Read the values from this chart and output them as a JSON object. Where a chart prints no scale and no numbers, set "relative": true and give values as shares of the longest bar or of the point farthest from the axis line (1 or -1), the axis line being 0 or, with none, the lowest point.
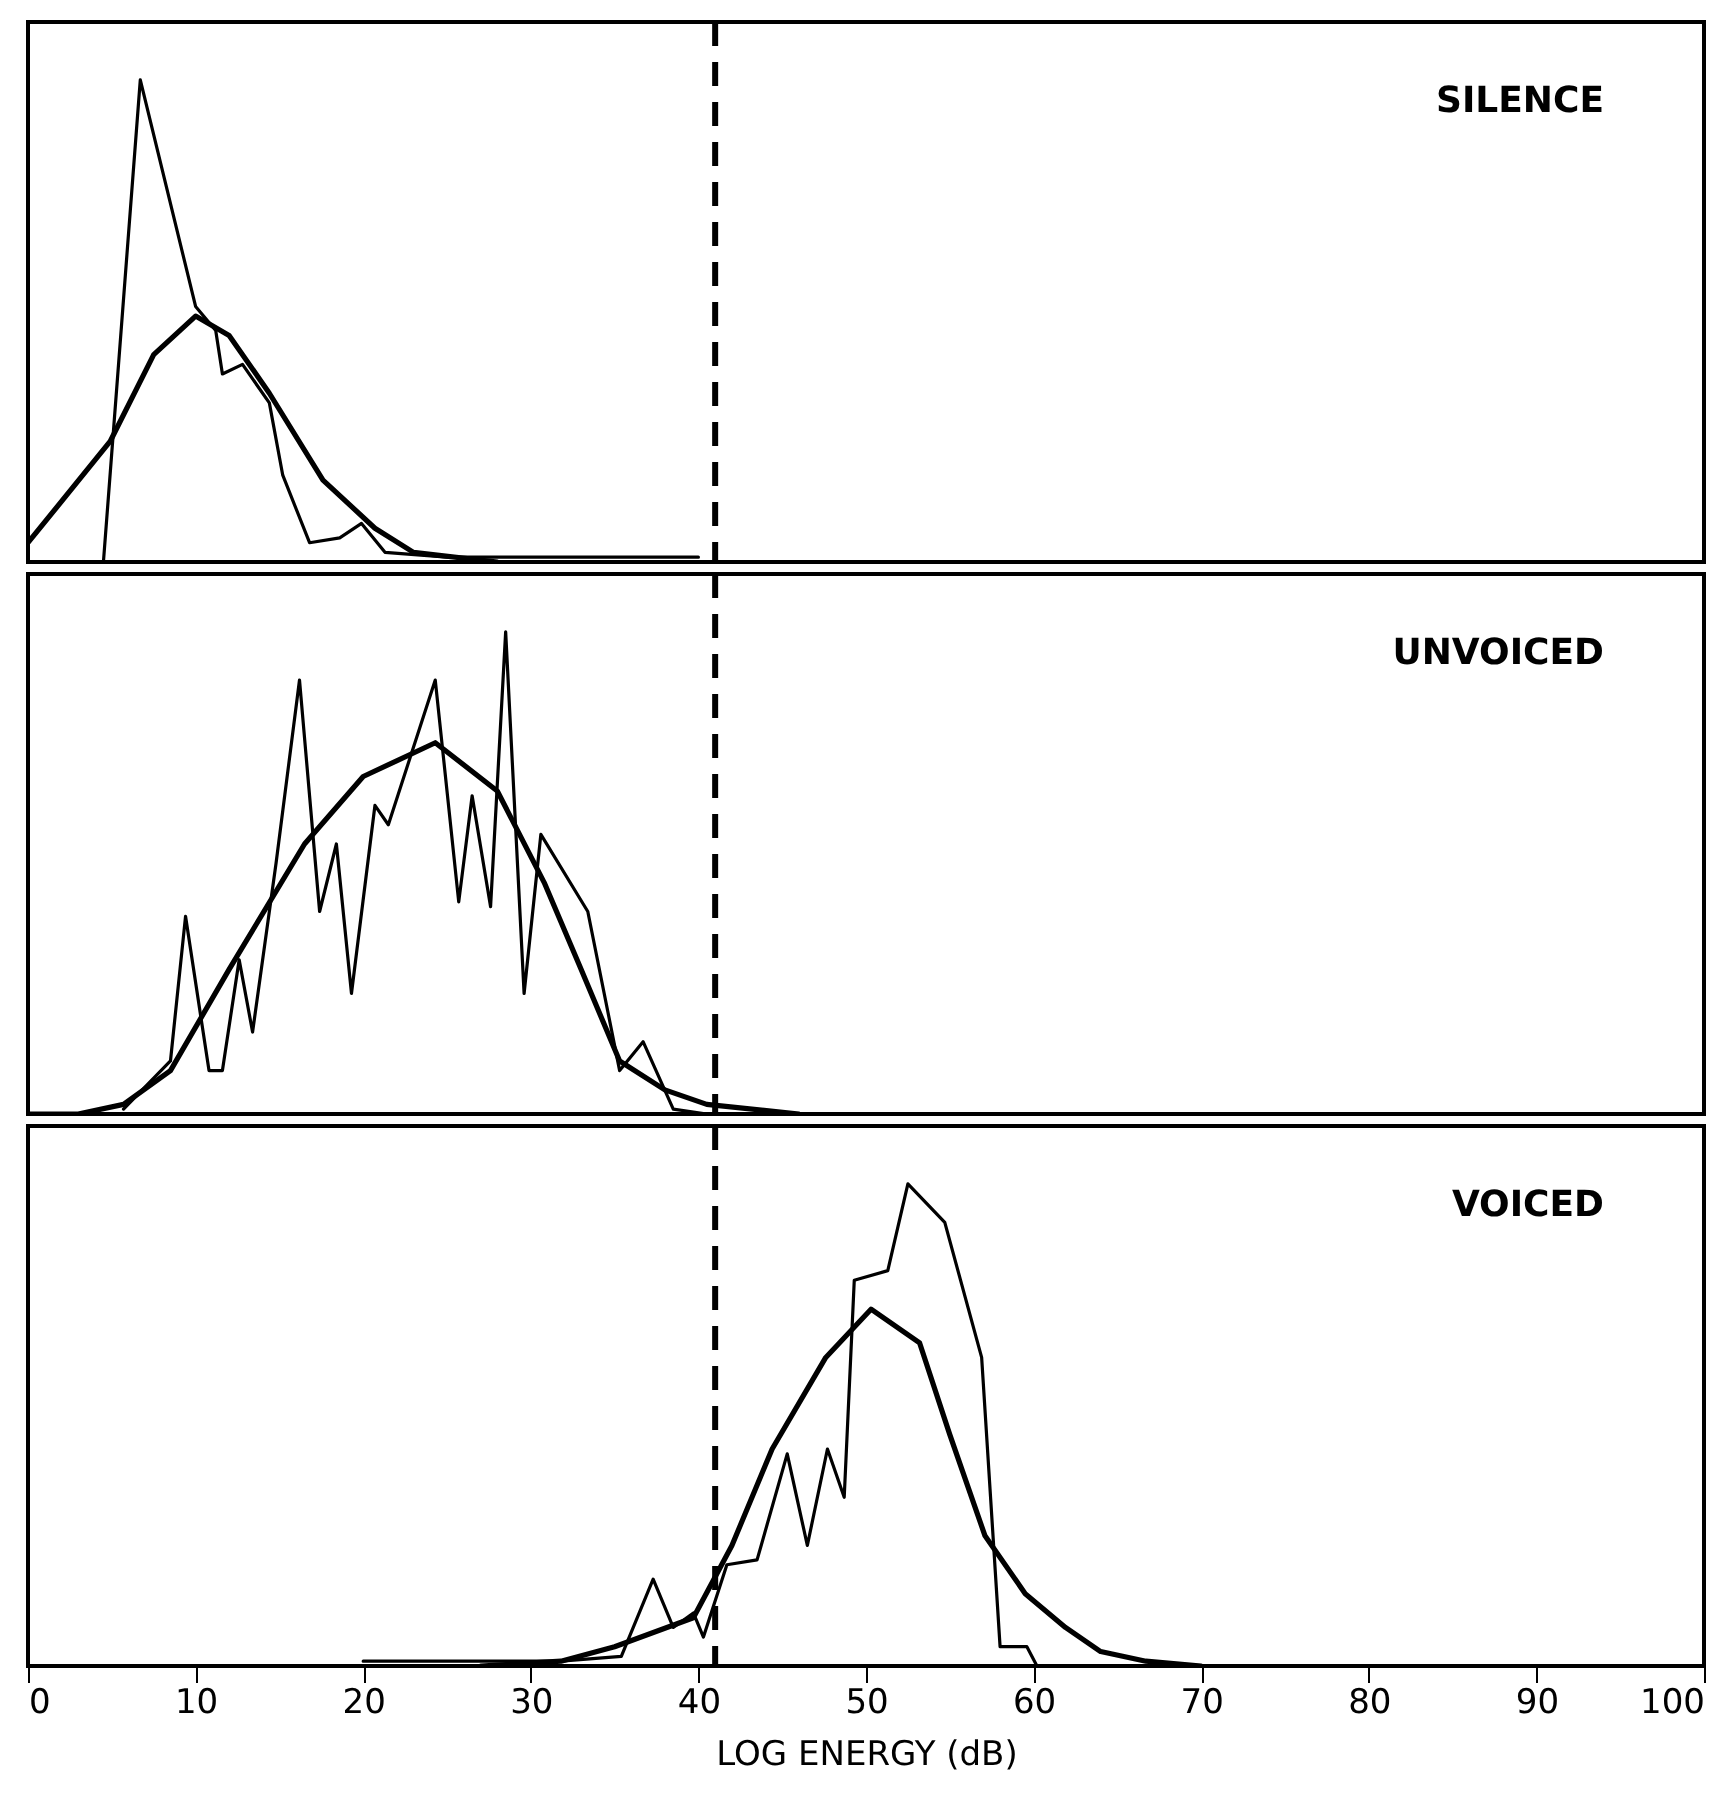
{
  "chart_data": [
    {
      "type": "line",
      "relative": true,
      "xlim": [
        0,
        100
      ],
      "xticks": [
        0,
        10,
        20,
        30,
        40,
        50,
        60,
        70,
        80,
        90,
        100
      ],
      "tick_labels": false,
      "annotations": [
        "SILENCE"
      ],
      "ref_lines": [
        {
          "axis": "x",
          "value": 41,
          "color": "#000000",
          "line_style": "dashed"
        }
      ],
      "series": [
        {
          "color": "#000000",
          "x": [
            4.5,
            6.7,
            10,
            11.2,
            11.6,
            12.8,
            14.4,
            15.2,
            16.8,
            18.6,
            19.9,
            21.3,
            25,
            30,
            35,
            40
          ],
          "values": [
            0,
            1,
            0.53,
            0.48,
            0.39,
            0.41,
            0.33,
            0.18,
            0.04,
            0.05,
            0.08,
            0.02,
            0.01,
            0.01,
            0.01,
            0.01
          ]
        },
        {
          "color": "#000000",
          "x": [
            0,
            4.9,
            7.5,
            10,
            12,
            14.4,
            17.6,
            20.7,
            23,
            28
          ],
          "values": [
            0.04,
            0.25,
            0.43,
            0.51,
            0.47,
            0.35,
            0.17,
            0.07,
            0.02,
            0
          ]
        }
      ]
    },
    {
      "type": "line",
      "relative": true,
      "xlim": [
        0,
        100
      ],
      "xticks": [
        0,
        10,
        20,
        30,
        40,
        50,
        60,
        70,
        80,
        90,
        100
      ],
      "tick_labels": false,
      "annotations": [
        "UNVOICED"
      ],
      "ref_lines": [
        {
          "axis": "x",
          "value": 41,
          "color": "#000000",
          "line_style": "dashed"
        }
      ],
      "series": [
        {
          "color": "#000000",
          "x": [
            5.7,
            8.5,
            9.4,
            10.8,
            11.6,
            12.6,
            13.4,
            14.8,
            16.2,
            17.4,
            18.4,
            19.3,
            20.7,
            21.5,
            24.3,
            25.7,
            26.5,
            27.6,
            28.5,
            29.6,
            30.6,
            33.4,
            35.3,
            36.7,
            38.5,
            40.5
          ],
          "values": [
            0.01,
            0.11,
            0.41,
            0.09,
            0.09,
            0.32,
            0.17,
            0.52,
            0.9,
            0.42,
            0.56,
            0.25,
            0.64,
            0.6,
            0.9,
            0.44,
            0.66,
            0.43,
            1,
            0.25,
            0.58,
            0.42,
            0.09,
            0.15,
            0.01,
            0
          ]
        },
        {
          "color": "#000000",
          "x": [
            0,
            3,
            5.7,
            8.5,
            12,
            16.5,
            20,
            24.3,
            28,
            30.8,
            33,
            35.3,
            38,
            40.5,
            46
          ],
          "values": [
            0,
            0,
            0.02,
            0.09,
            0.3,
            0.56,
            0.7,
            0.77,
            0.67,
            0.48,
            0.3,
            0.11,
            0.05,
            0.02,
            0
          ]
        }
      ]
    },
    {
      "type": "line",
      "relative": true,
      "xlim": [
        0,
        100
      ],
      "xticks": [
        0,
        10,
        20,
        30,
        40,
        50,
        60,
        70,
        80,
        90,
        100
      ],
      "tick_labels": "x",
      "xlabel": "LOG ENERGY (dB)",
      "annotations": [
        "VOICED"
      ],
      "ref_lines": [
        {
          "axis": "x",
          "value": 41,
          "color": "#000000",
          "line_style": "dashed"
        }
      ],
      "series": [
        {
          "color": "#000000",
          "x": [
            20,
            24,
            28,
            31.8,
            35.4,
            37.3,
            38.5,
            39.7,
            40.3,
            41.7,
            43.5,
            45.3,
            46.5,
            47.7,
            48.7,
            49.3,
            51.3,
            52.5,
            54.7,
            56.9,
            58,
            59.6,
            60.2
          ],
          "values": [
            0.01,
            0.01,
            0.01,
            0.01,
            0.02,
            0.18,
            0.08,
            0.11,
            0.06,
            0.21,
            0.22,
            0.44,
            0.25,
            0.45,
            0.35,
            0.8,
            0.82,
            1,
            0.92,
            0.64,
            0.04,
            0.04,
            0
          ]
        },
        {
          "color": "#000000",
          "x": [
            27,
            31.8,
            35,
            39.7,
            42,
            44.4,
            47.6,
            50.3,
            53.2,
            55,
            57.1,
            59.5,
            61.9,
            64,
            66.7,
            70
          ],
          "values": [
            0,
            0.01,
            0.04,
            0.1,
            0.25,
            0.45,
            0.64,
            0.74,
            0.67,
            0.48,
            0.27,
            0.15,
            0.08,
            0.03,
            0.01,
            0
          ]
        }
      ]
    }
  ]
}
